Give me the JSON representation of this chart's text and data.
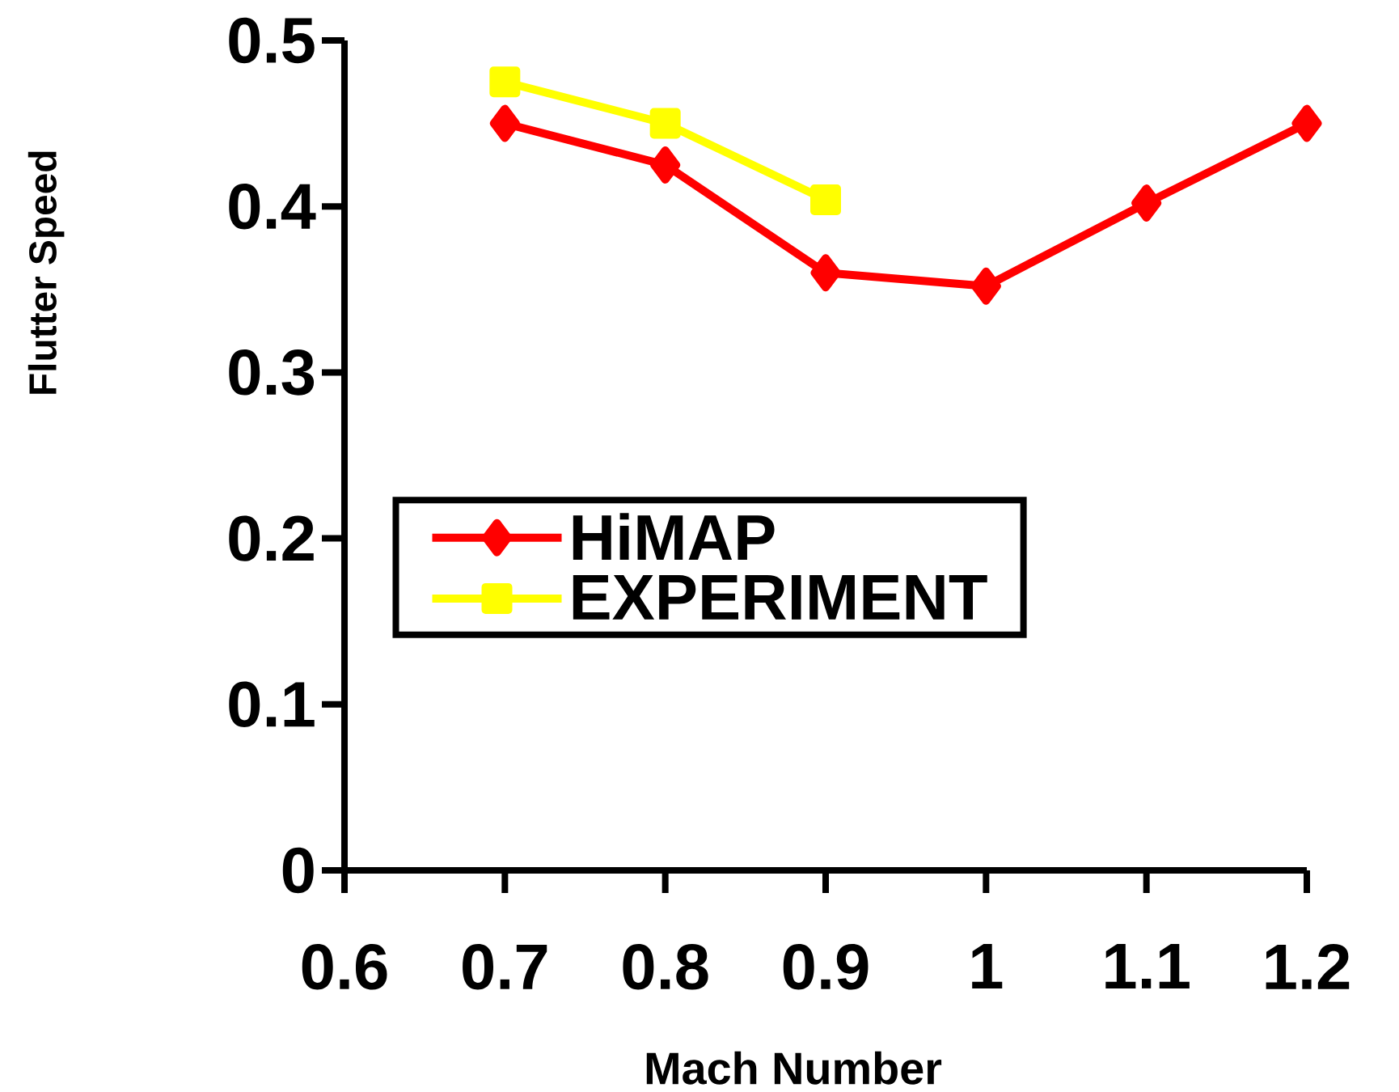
{
  "chart_data": {
    "type": "line",
    "xlabel": "Mach Number",
    "ylabel": "Flutter Speed",
    "xlim": [
      0.6,
      1.2
    ],
    "xticks": [
      0.6,
      0.7,
      0.8,
      0.9,
      1,
      1.1,
      1.2
    ],
    "ylim": [
      0,
      0.5
    ],
    "yticks": [
      0,
      0.1,
      0.2,
      0.3,
      0.4,
      0.5
    ],
    "x": [
      0.7,
      0.8,
      0.9,
      1,
      1.1,
      1.2
    ],
    "series": [
      {
        "name": "HiMAP",
        "color": "#ff0000",
        "marker": "diamond",
        "values": [
          0.45,
          0.425,
          0.36,
          0.352,
          0.402,
          0.45
        ]
      },
      {
        "name": "EXPERIMENT",
        "color": "#ffff00",
        "marker": "square",
        "values": [
          0.475,
          0.45,
          0.404,
          null,
          null,
          null
        ]
      }
    ],
    "legend": "center left",
    "grid": false
  }
}
